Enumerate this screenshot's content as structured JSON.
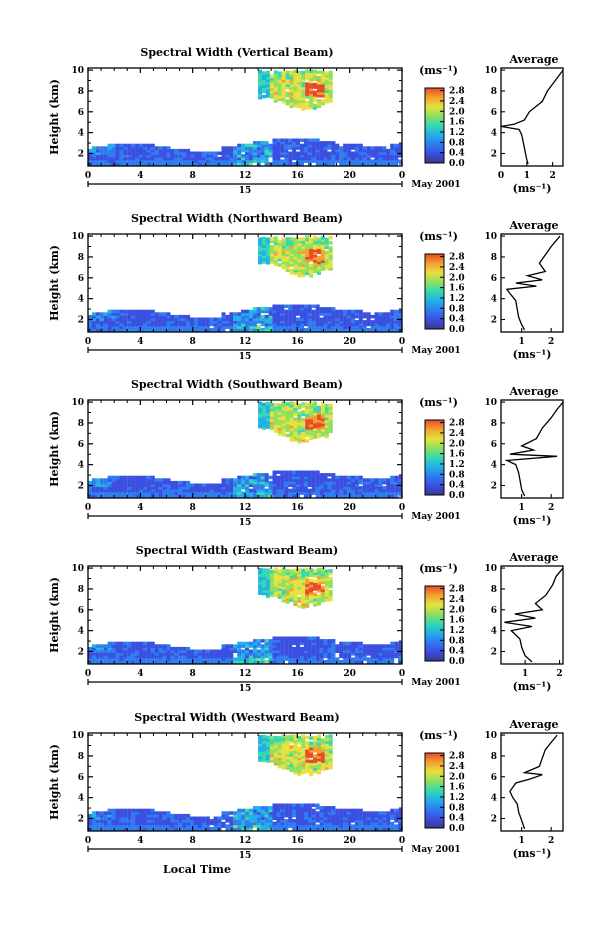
{
  "chart_data": {
    "type": "heatmap",
    "date_label": "May 2001",
    "day_label": "15",
    "xlabel": "Local Time",
    "ylabel": "Height (km)",
    "unit_label": "(ms⁻¹)",
    "avg_xlabel": "(ms⁻¹)",
    "avg_title": "Average",
    "x_ticks": [
      "0",
      "4",
      "8",
      "12",
      "16",
      "20",
      "0"
    ],
    "y_ticks": [
      "2",
      "4",
      "6",
      "8",
      "10"
    ],
    "xlim": [
      0,
      24
    ],
    "ylim": [
      0.8,
      10.2
    ],
    "colorbar": {
      "ticks": [
        "0.0",
        "0.4",
        "0.8",
        "1.2",
        "1.6",
        "2.0",
        "2.4",
        "2.8"
      ],
      "range": [
        0,
        2.9
      ],
      "colors": [
        "#3a3a8a",
        "#3b4fe0",
        "#2f7cf0",
        "#22b0e6",
        "#36d8b0",
        "#8ee060",
        "#e8e040",
        "#f3a030",
        "#e84a2a"
      ]
    },
    "panels": [
      {
        "title": "Spectral Width (Vertical Beam)",
        "avg_ticks": [
          "0",
          "1",
          "2"
        ],
        "avg_xlim": [
          0,
          2.4
        ],
        "avg_profile": [
          [
            1.0,
            1.05
          ],
          [
            1.4,
            1.0
          ],
          [
            2.0,
            0.95
          ],
          [
            2.6,
            0.9
          ],
          [
            3.2,
            0.85
          ],
          [
            3.8,
            0.8
          ],
          [
            4.3,
            0.7
          ],
          [
            4.6,
            0.0
          ],
          [
            4.8,
            0.5
          ],
          [
            5.2,
            0.9
          ],
          [
            6.0,
            1.1
          ],
          [
            7.0,
            1.6
          ],
          [
            8.0,
            1.8
          ],
          [
            9.0,
            2.1
          ],
          [
            10.0,
            2.4
          ]
        ]
      },
      {
        "title": "Spectral Width (Northward Beam)",
        "avg_ticks": [
          "1",
          "2"
        ],
        "avg_xlim": [
          0.3,
          2.4
        ],
        "avg_profile": [
          [
            1.0,
            1.1
          ],
          [
            1.5,
            1.0
          ],
          [
            2.2,
            0.9
          ],
          [
            3.0,
            0.85
          ],
          [
            3.8,
            0.8
          ],
          [
            4.5,
            0.6
          ],
          [
            4.9,
            0.5
          ],
          [
            5.2,
            1.5
          ],
          [
            5.5,
            0.8
          ],
          [
            5.8,
            1.7
          ],
          [
            6.2,
            1.2
          ],
          [
            6.6,
            1.8
          ],
          [
            7.4,
            1.6
          ],
          [
            8.2,
            1.8
          ],
          [
            9.0,
            2.0
          ],
          [
            10.0,
            2.3
          ]
        ]
      },
      {
        "title": "Spectral Width (Southward Beam)",
        "avg_ticks": [
          "1",
          "2"
        ],
        "avg_xlim": [
          0.3,
          2.4
        ],
        "avg_profile": [
          [
            1.0,
            1.1
          ],
          [
            1.6,
            1.0
          ],
          [
            2.4,
            0.95
          ],
          [
            3.2,
            0.9
          ],
          [
            4.0,
            0.8
          ],
          [
            4.4,
            0.5
          ],
          [
            4.8,
            2.2
          ],
          [
            5.0,
            0.6
          ],
          [
            5.4,
            1.4
          ],
          [
            5.8,
            1.0
          ],
          [
            6.5,
            1.5
          ],
          [
            7.5,
            1.7
          ],
          [
            8.5,
            2.0
          ],
          [
            9.3,
            2.2
          ],
          [
            10.0,
            2.4
          ]
        ]
      },
      {
        "title": "Spectral Width (Eastward Beam)",
        "avg_ticks": [
          "1",
          "2"
        ],
        "avg_xlim": [
          0.3,
          2.1
        ],
        "avg_profile": [
          [
            1.0,
            1.2
          ],
          [
            1.6,
            1.0
          ],
          [
            2.4,
            0.9
          ],
          [
            3.2,
            0.85
          ],
          [
            4.0,
            0.6
          ],
          [
            4.4,
            1.2
          ],
          [
            4.8,
            0.4
          ],
          [
            5.2,
            1.3
          ],
          [
            5.6,
            0.7
          ],
          [
            6.0,
            1.5
          ],
          [
            6.6,
            1.3
          ],
          [
            7.4,
            1.6
          ],
          [
            8.4,
            1.8
          ],
          [
            9.2,
            1.9
          ],
          [
            10.0,
            2.1
          ]
        ]
      },
      {
        "title": "Spectral Width (Westward Beam)",
        "avg_ticks": [
          "1",
          "2"
        ],
        "avg_xlim": [
          0.3,
          2.4
        ],
        "avg_profile": [
          [
            1.0,
            1.1
          ],
          [
            1.8,
            1.0
          ],
          [
            2.6,
            0.9
          ],
          [
            3.4,
            0.85
          ],
          [
            4.0,
            0.7
          ],
          [
            4.6,
            0.6
          ],
          [
            5.4,
            0.8
          ],
          [
            5.8,
            1.3
          ],
          [
            6.2,
            1.7
          ],
          [
            6.4,
            1.1
          ],
          [
            7.0,
            1.6
          ],
          [
            7.8,
            1.7
          ],
          [
            8.6,
            1.8
          ],
          [
            9.3,
            2.0
          ],
          [
            10.0,
            2.2
          ]
        ]
      }
    ]
  }
}
